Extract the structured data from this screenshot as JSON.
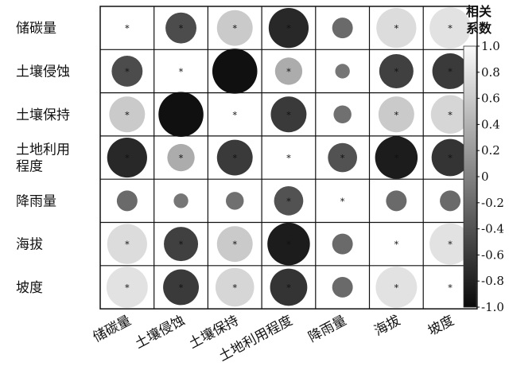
{
  "chart_data": {
    "type": "heatmap",
    "title": "",
    "xlabel": "",
    "ylabel": "",
    "rows": [
      "储碳量",
      "土壤侵蚀",
      "土壤保持",
      "土地利用\n程度",
      "降雨量",
      "海拔",
      "坡度"
    ],
    "columns": [
      "储碳量",
      "土壤侵蚀",
      "土壤保持",
      "土地利用程度",
      "降雨量",
      "海拔",
      "坡度"
    ],
    "values": [
      [
        1.0,
        -0.45,
        0.6,
        -0.75,
        -0.2,
        0.75,
        0.8
      ],
      [
        -0.45,
        1.0,
        -0.95,
        0.35,
        -0.1,
        -0.55,
        -0.6
      ],
      [
        0.6,
        -0.95,
        1.0,
        -0.6,
        -0.15,
        0.6,
        0.7
      ],
      [
        -0.75,
        0.35,
        -0.6,
        1.0,
        -0.4,
        -0.85,
        -0.65
      ],
      [
        -0.2,
        -0.1,
        -0.15,
        -0.4,
        1.0,
        -0.2,
        -0.2
      ],
      [
        0.75,
        -0.55,
        0.6,
        -0.85,
        -0.2,
        1.0,
        0.8
      ],
      [
        0.8,
        -0.6,
        0.7,
        -0.65,
        -0.2,
        0.8,
        1.0
      ]
    ],
    "significance": [
      [
        true,
        true,
        true,
        true,
        false,
        true,
        true
      ],
      [
        true,
        true,
        true,
        true,
        false,
        true,
        true
      ],
      [
        true,
        true,
        true,
        true,
        false,
        true,
        true
      ],
      [
        true,
        true,
        true,
        true,
        true,
        true,
        true
      ],
      [
        false,
        false,
        false,
        true,
        true,
        false,
        false
      ],
      [
        true,
        true,
        true,
        true,
        false,
        true,
        true
      ],
      [
        true,
        true,
        true,
        true,
        false,
        true,
        true
      ]
    ],
    "significance_marker": "*",
    "colorbar": {
      "title": "相关\n系数",
      "range": [
        -1.0,
        1.0
      ],
      "ticks": [
        "1.0",
        "0.8",
        "0.6",
        "0.4",
        "0.2",
        "0",
        "-0.2",
        "-0.4",
        "-0.6",
        "-0.8",
        "-1.0"
      ],
      "color_low": "#0a0a0a",
      "color_high": "#fafafa"
    },
    "grid": true
  }
}
